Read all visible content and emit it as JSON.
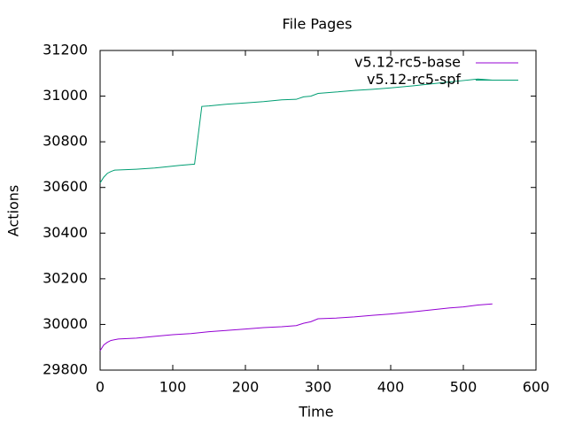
{
  "chart_data": {
    "type": "line",
    "title": "File Pages",
    "x_label": "Time",
    "y_label": "Actions",
    "xlim": [
      0,
      600
    ],
    "xticks": [
      0,
      100,
      200,
      300,
      400,
      500,
      600
    ],
    "ylim": [
      29800,
      31200
    ],
    "yticks": [
      29800,
      30000,
      30200,
      30400,
      30600,
      30800,
      31000,
      31200
    ],
    "grid": false,
    "legend": "top-right",
    "series": [
      {
        "name": "v5.12-rc5-base",
        "color": "#9400d3",
        "x": [
          0,
          5,
          10,
          15,
          25,
          50,
          75,
          100,
          125,
          150,
          175,
          200,
          225,
          250,
          270,
          280,
          290,
          300,
          325,
          350,
          375,
          400,
          430,
          460,
          480,
          500,
          520,
          540
        ],
        "values": [
          29885,
          29910,
          29922,
          29930,
          29936,
          29940,
          29948,
          29955,
          29960,
          29968,
          29974,
          29980,
          29986,
          29990,
          29995,
          30005,
          30012,
          30025,
          30028,
          30033,
          30040,
          30046,
          30055,
          30065,
          30072,
          30077,
          30085,
          30090
        ]
      },
      {
        "name": "v5.12-rc5-spf",
        "color": "#009e73",
        "x": [
          0,
          5,
          10,
          15,
          20,
          50,
          75,
          90,
          110,
          130,
          140,
          150,
          175,
          200,
          225,
          250,
          270,
          280,
          290,
          300,
          325,
          350,
          375,
          400,
          430,
          460,
          490,
          520,
          540,
          575
        ],
        "values": [
          30620,
          30645,
          30662,
          30670,
          30676,
          30680,
          30685,
          30690,
          30697,
          30702,
          30955,
          30957,
          30965,
          30970,
          30976,
          30984,
          30986,
          30997,
          31000,
          31012,
          31018,
          31025,
          31030,
          31036,
          31045,
          31055,
          31065,
          31075,
          31070,
          31070
        ]
      }
    ]
  }
}
